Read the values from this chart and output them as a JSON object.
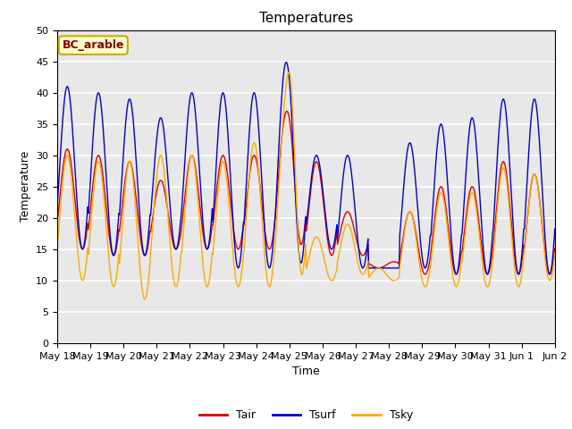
{
  "title": "Temperatures",
  "xlabel": "Time",
  "ylabel": "Temperature",
  "annotation": "BC_arable",
  "legend": [
    "Tair",
    "Tsurf",
    "Tsky"
  ],
  "line_colors": [
    "#dd0000",
    "#0000cc",
    "#ffaa00"
  ],
  "ylim": [
    0,
    50
  ],
  "yticks": [
    0,
    5,
    10,
    15,
    20,
    25,
    30,
    35,
    40,
    45,
    50
  ],
  "xtick_labels": [
    "May 18",
    "May 19",
    "May 20",
    "May 21",
    "May 22",
    "May 23",
    "May 24",
    "May 25",
    "May 26",
    "May 27",
    "May 28",
    "May 29",
    "May 30",
    "May 31",
    "Jun 1",
    "Jun 2"
  ],
  "bg_color": "#e8e8e8",
  "annotation_bg": "#ffffcc",
  "annotation_border": "#ccaa00",
  "annotation_text_color": "#880000",
  "title_fontsize": 11,
  "axis_label_fontsize": 9,
  "tick_fontsize": 8,
  "figsize": [
    6.4,
    4.8
  ],
  "dpi": 100
}
